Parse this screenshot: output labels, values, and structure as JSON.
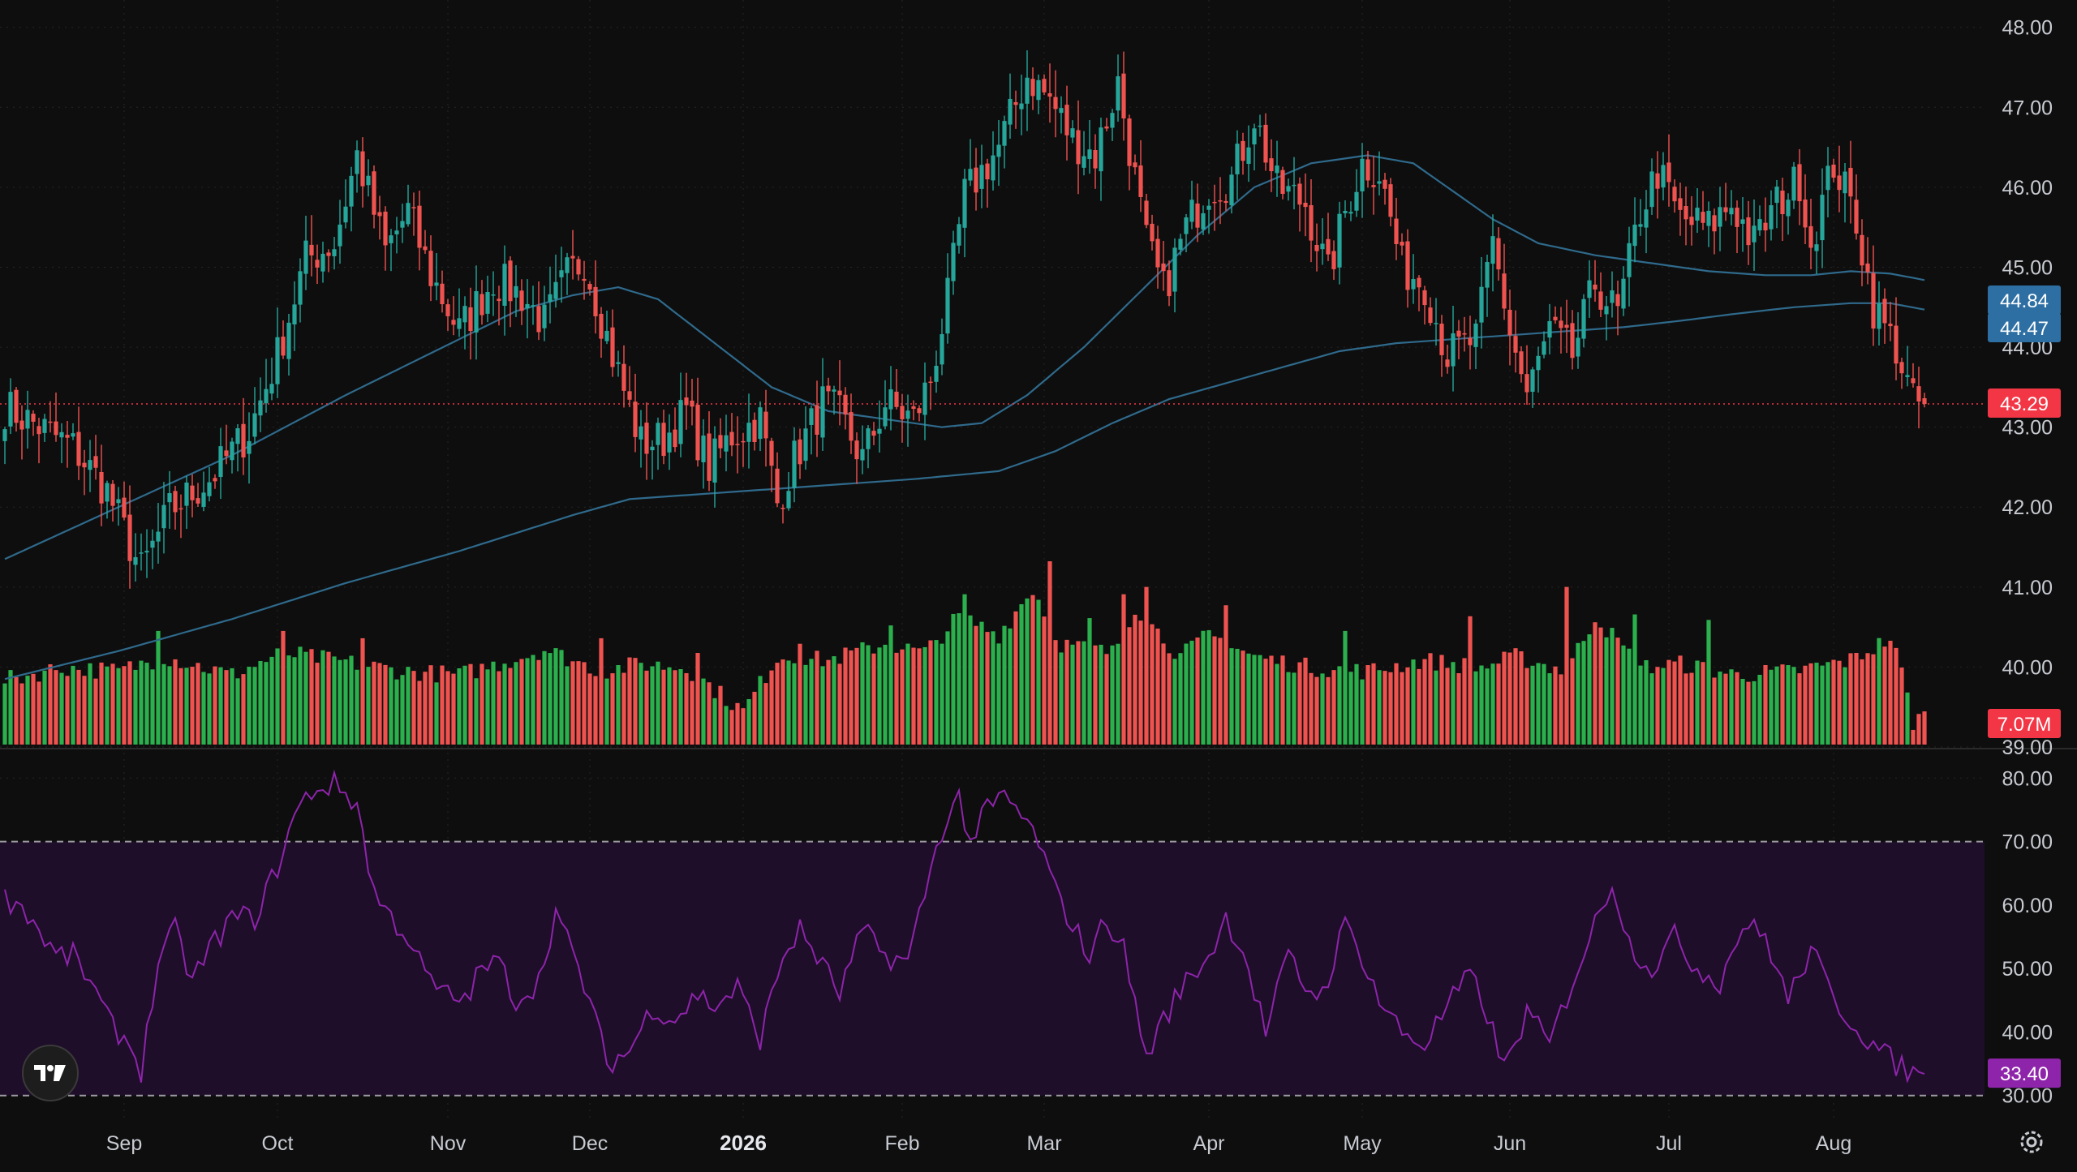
{
  "chart_data": {
    "type": "candlestick",
    "price_axis": {
      "range": [
        39.0,
        48.2
      ],
      "ticks": [
        "39.00",
        "40.00",
        "41.00",
        "42.00",
        "43.00",
        "44.00",
        "45.00",
        "46.00",
        "47.00",
        "48.00"
      ]
    },
    "rsi_axis": {
      "range": [
        26.0,
        84.0
      ],
      "ticks": [
        "30.00",
        "40.00",
        "50.00",
        "60.00",
        "70.00",
        "80.00"
      ],
      "overbought": 70,
      "oversold": 30
    },
    "time_axis": [
      {
        "label": "Sep",
        "bar": 21,
        "bold": false
      },
      {
        "label": "Oct",
        "bar": 48,
        "bold": false
      },
      {
        "label": "Nov",
        "bar": 78,
        "bold": false
      },
      {
        "label": "Dec",
        "bar": 103,
        "bold": false
      },
      {
        "label": "2026",
        "bar": 130,
        "bold": true
      },
      {
        "label": "Feb",
        "bar": 158,
        "bold": false
      },
      {
        "label": "Mar",
        "bar": 183,
        "bold": false
      },
      {
        "label": "Apr",
        "bar": 212,
        "bold": false
      },
      {
        "label": "May",
        "bar": 239,
        "bold": false
      },
      {
        "label": "Jun",
        "bar": 265,
        "bold": false
      },
      {
        "label": "Jul",
        "bar": 293,
        "bold": false
      },
      {
        "label": "Aug",
        "bar": 322,
        "bold": false
      }
    ],
    "close_anchors": [
      [
        0,
        43.25
      ],
      [
        5,
        43.05
      ],
      [
        12,
        42.75
      ],
      [
        18,
        42.2
      ],
      [
        24,
        41.2
      ],
      [
        29,
        41.95
      ],
      [
        36,
        42.35
      ],
      [
        43,
        42.95
      ],
      [
        48,
        43.9
      ],
      [
        53,
        45.1
      ],
      [
        58,
        45.3
      ],
      [
        62,
        46.4
      ],
      [
        67,
        45.2
      ],
      [
        71,
        45.7
      ],
      [
        75,
        44.9
      ],
      [
        80,
        44.2
      ],
      [
        86,
        44.85
      ],
      [
        91,
        44.65
      ],
      [
        95,
        44.3
      ],
      [
        99,
        44.9
      ],
      [
        102,
        45.1
      ],
      [
        107,
        43.9
      ],
      [
        112,
        42.8
      ],
      [
        116,
        42.85
      ],
      [
        120,
        43.2
      ],
      [
        124,
        42.5
      ],
      [
        128,
        42.9
      ],
      [
        133,
        43.1
      ],
      [
        136,
        42.05
      ],
      [
        139,
        42.6
      ],
      [
        144,
        43.3
      ],
      [
        147,
        43.15
      ],
      [
        151,
        42.6
      ],
      [
        155,
        43.3
      ],
      [
        160,
        43.1
      ],
      [
        163,
        43.6
      ],
      [
        166,
        44.6
      ],
      [
        169,
        45.9
      ],
      [
        172,
        46.2
      ],
      [
        175,
        46.5
      ],
      [
        180,
        47.4
      ],
      [
        184,
        47.1
      ],
      [
        188,
        46.6
      ],
      [
        192,
        46.4
      ],
      [
        196,
        47.3
      ],
      [
        201,
        45.3
      ],
      [
        204,
        44.7
      ],
      [
        208,
        45.5
      ],
      [
        212,
        46.0
      ],
      [
        216,
        46.1
      ],
      [
        220,
        46.9
      ],
      [
        224,
        46.0
      ],
      [
        229,
        45.8
      ],
      [
        233,
        44.9
      ],
      [
        236,
        45.7
      ],
      [
        239,
        46.3
      ],
      [
        242,
        46.2
      ],
      [
        246,
        45.0
      ],
      [
        250,
        44.8
      ],
      [
        254,
        43.9
      ],
      [
        259,
        44.1
      ],
      [
        262,
        45.3
      ],
      [
        265,
        44.2
      ],
      [
        268,
        43.4
      ],
      [
        272,
        44.2
      ],
      [
        276,
        43.9
      ],
      [
        280,
        44.8
      ],
      [
        284,
        44.4
      ],
      [
        288,
        45.7
      ],
      [
        291,
        46.2
      ],
      [
        295,
        45.6
      ],
      [
        300,
        45.5
      ],
      [
        304,
        45.8
      ],
      [
        308,
        45.3
      ],
      [
        312,
        45.8
      ],
      [
        316,
        46.1
      ],
      [
        318,
        45.3
      ],
      [
        322,
        46.3
      ],
      [
        326,
        45.6
      ],
      [
        329,
        44.5
      ],
      [
        333,
        44.0
      ],
      [
        336,
        43.3
      ],
      [
        338,
        43.29
      ]
    ],
    "ma_fast": {
      "last_value": "44.84",
      "color": "#2f6a8c",
      "points": [
        [
          0,
          41.35
        ],
        [
          20,
          42.0
        ],
        [
          40,
          42.65
        ],
        [
          60,
          43.4
        ],
        [
          80,
          44.1
        ],
        [
          90,
          44.45
        ],
        [
          100,
          44.65
        ],
        [
          108,
          44.75
        ],
        [
          115,
          44.6
        ],
        [
          125,
          44.05
        ],
        [
          135,
          43.5
        ],
        [
          145,
          43.2
        ],
        [
          155,
          43.1
        ],
        [
          165,
          43.0
        ],
        [
          172,
          43.05
        ],
        [
          180,
          43.4
        ],
        [
          190,
          44.0
        ],
        [
          200,
          44.7
        ],
        [
          210,
          45.4
        ],
        [
          220,
          46.0
        ],
        [
          230,
          46.3
        ],
        [
          240,
          46.4
        ],
        [
          248,
          46.3
        ],
        [
          255,
          45.95
        ],
        [
          262,
          45.6
        ],
        [
          270,
          45.3
        ],
        [
          280,
          45.15
        ],
        [
          290,
          45.05
        ],
        [
          300,
          44.95
        ],
        [
          310,
          44.9
        ],
        [
          318,
          44.9
        ],
        [
          325,
          44.95
        ],
        [
          332,
          44.92
        ],
        [
          338,
          44.84
        ]
      ]
    },
    "ma_slow": {
      "last_value": "44.47",
      "color": "#2f6a8c",
      "points": [
        [
          0,
          39.85
        ],
        [
          20,
          40.2
        ],
        [
          40,
          40.6
        ],
        [
          60,
          41.05
        ],
        [
          80,
          41.45
        ],
        [
          100,
          41.9
        ],
        [
          110,
          42.1
        ],
        [
          120,
          42.15
        ],
        [
          140,
          42.25
        ],
        [
          160,
          42.35
        ],
        [
          175,
          42.45
        ],
        [
          185,
          42.7
        ],
        [
          195,
          43.05
        ],
        [
          205,
          43.35
        ],
        [
          215,
          43.55
        ],
        [
          225,
          43.75
        ],
        [
          235,
          43.95
        ],
        [
          245,
          44.05
        ],
        [
          255,
          44.1
        ],
        [
          265,
          44.15
        ],
        [
          275,
          44.2
        ],
        [
          285,
          44.25
        ],
        [
          295,
          44.33
        ],
        [
          305,
          44.42
        ],
        [
          315,
          44.5
        ],
        [
          325,
          44.55
        ],
        [
          332,
          44.55
        ],
        [
          338,
          44.47
        ]
      ]
    },
    "last_price": {
      "value": "43.29",
      "color": "#f23645"
    },
    "volume": {
      "last_value": "7.07M",
      "last_color": "#f23645",
      "anchors": [
        [
          0,
          35
        ],
        [
          10,
          42
        ],
        [
          20,
          40
        ],
        [
          28,
          48
        ],
        [
          40,
          38
        ],
        [
          49,
          50
        ],
        [
          60,
          45
        ],
        [
          70,
          40
        ],
        [
          80,
          38
        ],
        [
          88,
          45
        ],
        [
          95,
          52
        ],
        [
          105,
          40
        ],
        [
          112,
          44
        ],
        [
          120,
          42
        ],
        [
          125,
          30
        ],
        [
          130,
          18
        ],
        [
          136,
          48
        ],
        [
          145,
          46
        ],
        [
          155,
          55
        ],
        [
          162,
          50
        ],
        [
          168,
          70
        ],
        [
          175,
          60
        ],
        [
          181,
          85
        ],
        [
          186,
          55
        ],
        [
          195,
          50
        ],
        [
          199,
          75
        ],
        [
          207,
          48
        ],
        [
          212,
          60
        ],
        [
          220,
          48
        ],
        [
          230,
          42
        ],
        [
          240,
          40
        ],
        [
          250,
          46
        ],
        [
          260,
          42
        ],
        [
          266,
          48
        ],
        [
          275,
          40
        ],
        [
          280,
          70
        ],
        [
          288,
          42
        ],
        [
          295,
          44
        ],
        [
          305,
          38
        ],
        [
          315,
          40
        ],
        [
          325,
          46
        ],
        [
          332,
          58
        ],
        [
          334,
          40
        ],
        [
          336,
          12
        ],
        [
          337,
          15
        ]
      ],
      "spikes": [
        [
          27,
          62
        ],
        [
          49,
          62
        ],
        [
          63,
          58
        ],
        [
          105,
          58
        ],
        [
          122,
          50
        ],
        [
          140,
          55
        ],
        [
          156,
          65
        ],
        [
          169,
          82
        ],
        [
          184,
          100
        ],
        [
          191,
          69
        ],
        [
          197,
          82
        ],
        [
          201,
          86
        ],
        [
          215,
          76
        ],
        [
          236,
          62
        ],
        [
          258,
          70
        ],
        [
          275,
          86
        ],
        [
          287,
          71
        ],
        [
          300,
          68
        ]
      ]
    },
    "rsi": {
      "last_value": "33.40",
      "color": "#8e24aa",
      "band_color": "#1e0e2a",
      "anchors": [
        [
          0,
          61
        ],
        [
          3,
          60
        ],
        [
          6,
          56
        ],
        [
          9,
          52
        ],
        [
          12,
          52
        ],
        [
          15,
          48
        ],
        [
          18,
          42
        ],
        [
          22,
          38
        ],
        [
          24,
          34
        ],
        [
          27,
          51
        ],
        [
          30,
          56
        ],
        [
          33,
          48
        ],
        [
          36,
          53
        ],
        [
          40,
          58
        ],
        [
          44,
          58
        ],
        [
          48,
          66
        ],
        [
          51,
          74
        ],
        [
          54,
          78
        ],
        [
          58,
          79
        ],
        [
          62,
          76
        ],
        [
          65,
          62
        ],
        [
          68,
          58
        ],
        [
          71,
          55
        ],
        [
          74,
          49
        ],
        [
          77,
          46
        ],
        [
          81,
          45
        ],
        [
          84,
          50
        ],
        [
          87,
          51
        ],
        [
          90,
          45
        ],
        [
          94,
          48
        ],
        [
          97,
          59
        ],
        [
          100,
          52
        ],
        [
          103,
          45
        ],
        [
          106,
          35
        ],
        [
          110,
          37
        ],
        [
          114,
          44
        ],
        [
          118,
          42
        ],
        [
          122,
          46
        ],
        [
          125,
          44
        ],
        [
          129,
          47
        ],
        [
          133,
          39
        ],
        [
          137,
          52
        ],
        [
          140,
          56
        ],
        [
          143,
          52
        ],
        [
          147,
          46
        ],
        [
          151,
          56
        ],
        [
          155,
          52
        ],
        [
          159,
          51
        ],
        [
          162,
          62
        ],
        [
          165,
          72
        ],
        [
          168,
          77
        ],
        [
          170,
          70
        ],
        [
          173,
          75
        ],
        [
          176,
          77
        ],
        [
          179,
          74
        ],
        [
          182,
          70
        ],
        [
          185,
          62
        ],
        [
          188,
          57
        ],
        [
          191,
          52
        ],
        [
          194,
          58
        ],
        [
          197,
          53
        ],
        [
          201,
          36
        ],
        [
          204,
          42
        ],
        [
          208,
          48
        ],
        [
          212,
          52
        ],
        [
          215,
          58
        ],
        [
          218,
          53
        ],
        [
          222,
          40
        ],
        [
          226,
          52
        ],
        [
          229,
          47
        ],
        [
          232,
          46
        ],
        [
          236,
          57
        ],
        [
          239,
          52
        ],
        [
          242,
          45
        ],
        [
          246,
          40
        ],
        [
          250,
          38
        ],
        [
          254,
          44
        ],
        [
          258,
          49
        ],
        [
          261,
          43
        ],
        [
          264,
          34
        ],
        [
          268,
          43
        ],
        [
          272,
          38
        ],
        [
          276,
          48
        ],
        [
          280,
          57
        ],
        [
          283,
          64
        ],
        [
          286,
          54
        ],
        [
          290,
          50
        ],
        [
          294,
          55
        ],
        [
          298,
          50
        ],
        [
          302,
          48
        ],
        [
          306,
          57
        ],
        [
          310,
          55
        ],
        [
          314,
          45
        ],
        [
          318,
          53
        ],
        [
          322,
          45
        ],
        [
          326,
          41
        ],
        [
          330,
          37
        ],
        [
          333,
          35
        ],
        [
          336,
          33.4
        ]
      ]
    },
    "colors": {
      "up": "#26a69a",
      "down": "#ef5350",
      "vol_up": "#2bb04d",
      "vol_down": "#ef5350",
      "grid": "#262626",
      "price_badge_blue": "#2e6fa3"
    }
  }
}
